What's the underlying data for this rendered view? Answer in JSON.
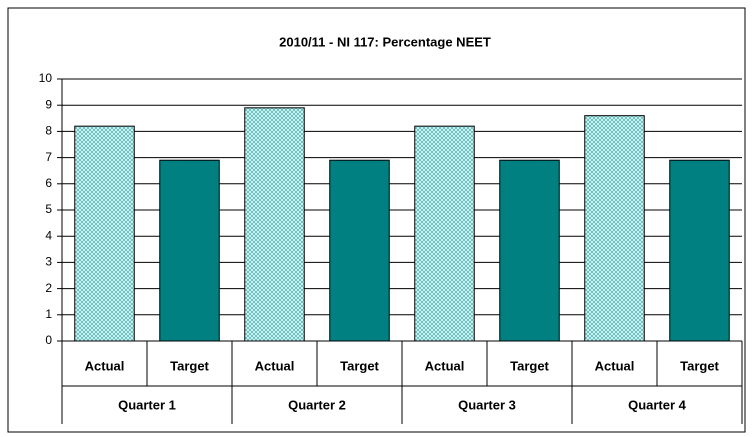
{
  "chart_data": {
    "type": "bar",
    "title": "2010/11 - NI 117: Percentage NEET",
    "categories": [
      "Quarter 1",
      "Quarter 2",
      "Quarter 3",
      "Quarter 4"
    ],
    "series": [
      {
        "name": "Actual",
        "color": "#ccffff",
        "pattern": "crosshatch",
        "values": [
          8.2,
          8.9,
          8.2,
          8.6
        ]
      },
      {
        "name": "Target",
        "color": "#008080",
        "values": [
          6.9,
          6.9,
          6.9,
          6.9
        ]
      }
    ],
    "ylim": [
      0,
      10
    ],
    "yticks": [
      0,
      1,
      2,
      3,
      4,
      5,
      6,
      7,
      8,
      9,
      10
    ],
    "grid": true
  }
}
